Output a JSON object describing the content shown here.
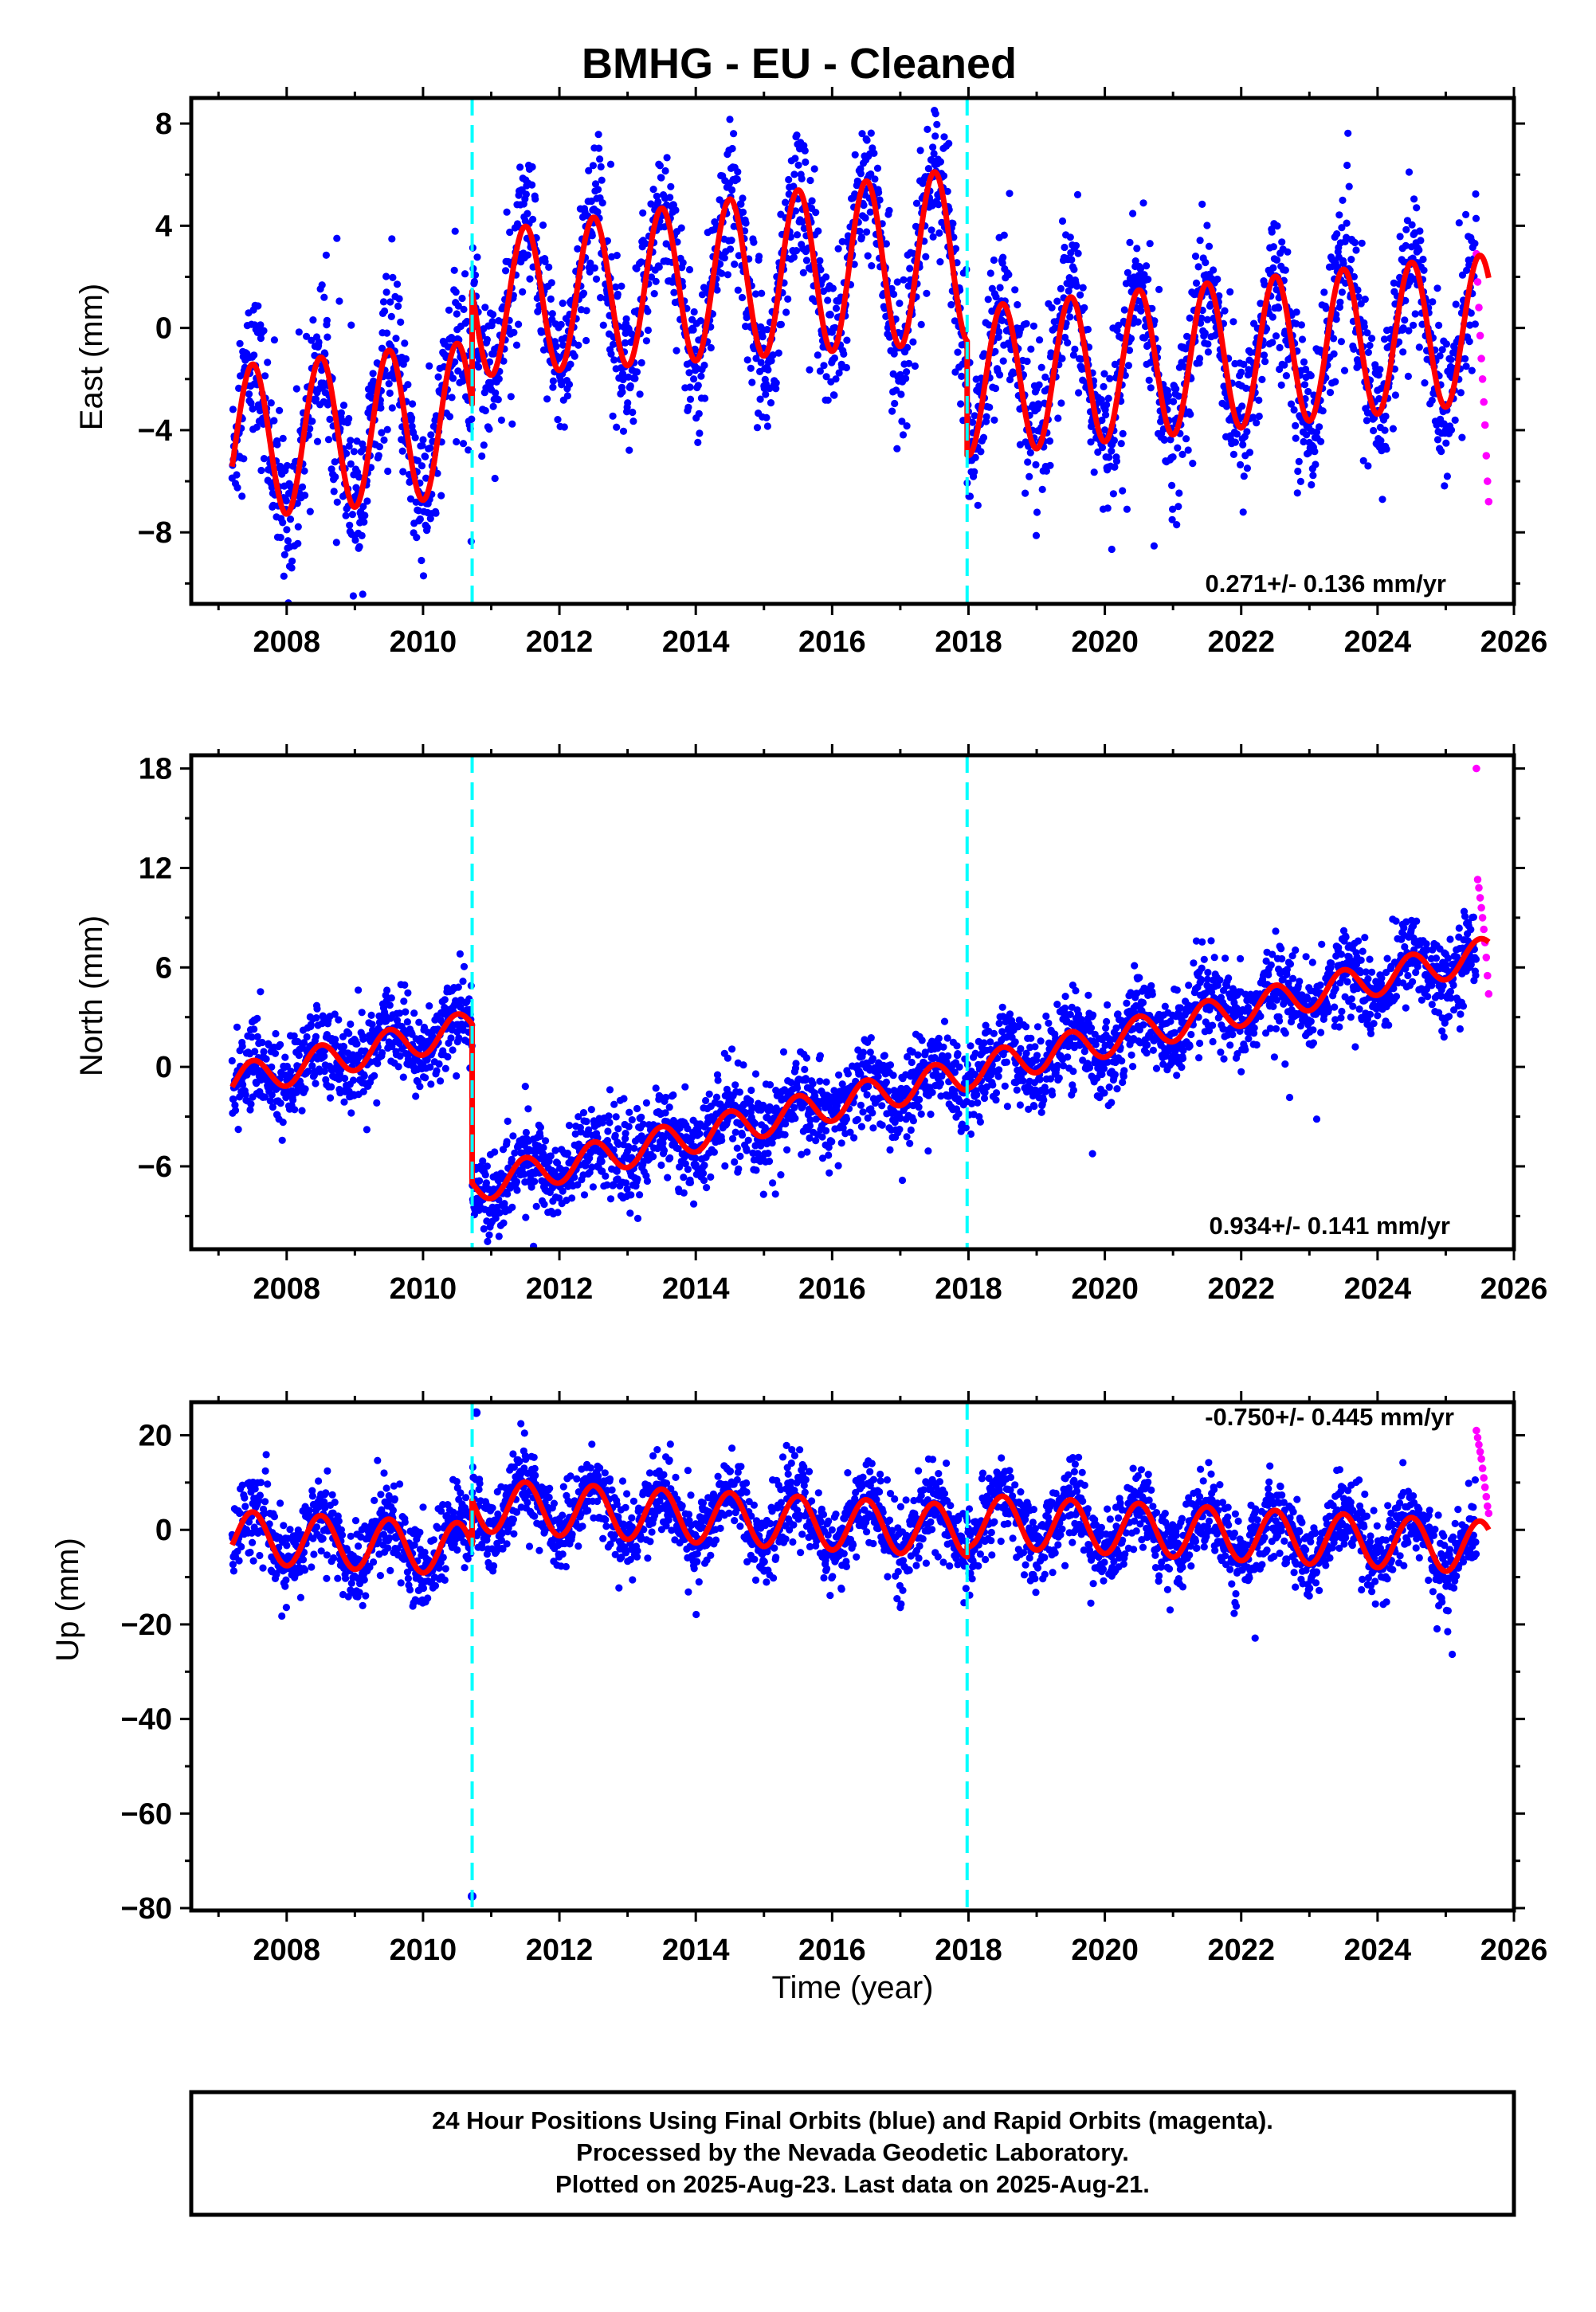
{
  "title": "BMHG  - EU - Cleaned",
  "colors": {
    "final_orbits": "#0000ff",
    "rapid_orbits": "#ff00ff",
    "model_fit": "#ff0000",
    "equipment_change": "#00ffff",
    "frame": "#000000"
  },
  "chart_data": [
    {
      "type": "scatter",
      "panel": "east",
      "ylabel": "East (mm)",
      "xlim": [
        2006.6,
        2026.0
      ],
      "ylim": [
        -10.8,
        9.0
      ],
      "yticks": [
        -8,
        -4,
        0,
        4,
        8
      ],
      "yticks_minor": [
        -10,
        -6,
        -2,
        2,
        6
      ],
      "xticks": [
        2008,
        2010,
        2012,
        2014,
        2016,
        2018,
        2020,
        2022,
        2024,
        2026
      ],
      "step_epochs": [
        2010.72,
        2017.98
      ],
      "rate_label": "0.271+/- 0.136 mm/yr",
      "data_start": 2007.2,
      "data_end": 2025.63,
      "rapid_start": 2025.45,
      "model": {
        "segments": [
          {
            "t0": 2007.2,
            "t1": 2010.72,
            "offset": -4.5,
            "slope": 0.271,
            "annual_amp": 3.0,
            "growth": 0.0
          },
          {
            "t0": 2010.72,
            "t1": 2017.98,
            "offset": 0.9,
            "slope": 0.271,
            "annual_amp": 2.8,
            "growth": 0.03
          },
          {
            "t0": 2017.98,
            "t1": 2025.63,
            "offset": -2.1,
            "slope": 0.271,
            "annual_amp": 2.9,
            "growth": 0.0
          }
        ],
        "noise": 1.45,
        "outlier_noise": 2.8
      },
      "rapid_values": [
        2.9,
        1.8,
        0.8,
        -0.3,
        -1.2,
        -2.0,
        -2.9,
        -3.8,
        -5.0,
        -6.0,
        -6.8
      ]
    },
    {
      "type": "scatter",
      "panel": "north",
      "ylabel": "North (mm)",
      "xlim": [
        2006.6,
        2026.0
      ],
      "ylim": [
        -11.0,
        18.8
      ],
      "yticks": [
        -6,
        0,
        6,
        12,
        18
      ],
      "yticks_minor": [
        -9,
        -3,
        3,
        9,
        15
      ],
      "xticks": [
        2008,
        2010,
        2012,
        2014,
        2016,
        2018,
        2020,
        2022,
        2024,
        2026
      ],
      "step_epochs": [
        2010.72,
        2017.98
      ],
      "rate_label": "0.934+/- 0.141 mm/yr",
      "data_start": 2007.2,
      "data_end": 2025.63,
      "rapid_start": 2025.45,
      "model": {
        "segments": [
          {
            "t0": 2007.2,
            "t1": 2010.72,
            "offset": -0.9,
            "slope": 0.934,
            "annual_amp": 1.0,
            "growth": 0.0
          },
          {
            "t0": 2010.72,
            "t1": 2017.98,
            "offset": -7.2,
            "slope": 0.934,
            "annual_amp": 1.0,
            "growth": 0.0
          },
          {
            "t0": 2017.98,
            "t1": 2025.63,
            "offset": -0.3,
            "slope": 0.934,
            "annual_amp": 1.0,
            "growth": 0.0
          }
        ],
        "noise": 1.3,
        "outlier_noise": 2.5
      },
      "rapid_values": [
        18.0,
        11.3,
        10.8,
        10.2,
        9.6,
        9.0,
        8.3,
        7.5,
        6.6,
        5.5,
        4.4
      ]
    },
    {
      "type": "scatter",
      "panel": "up",
      "ylabel": "Up (mm)",
      "xlabel": "Time (year)",
      "xlim": [
        2006.6,
        2026.0
      ],
      "ylim": [
        -80.5,
        27.0
      ],
      "yticks": [
        -80,
        -60,
        -40,
        -20,
        0,
        20
      ],
      "yticks_minor": [
        -70,
        -50,
        -30,
        -10,
        10
      ],
      "xticks": [
        2008,
        2010,
        2012,
        2014,
        2016,
        2018,
        2020,
        2022,
        2024,
        2026
      ],
      "step_epochs": [
        2010.72,
        2017.98
      ],
      "rate_label": "-0.750+/- 0.445 mm/yr",
      "data_start": 2007.2,
      "data_end": 2025.63,
      "rapid_start": 2025.45,
      "model": {
        "segments": [
          {
            "t0": 2007.2,
            "t1": 2010.72,
            "offset": -1.5,
            "slope": -0.75,
            "annual_amp": 5.5,
            "growth": 0.0
          },
          {
            "t0": 2010.72,
            "t1": 2017.98,
            "offset": 5.2,
            "slope": -0.75,
            "annual_amp": 5.5,
            "growth": 0.0
          },
          {
            "t0": 2017.98,
            "t1": 2025.63,
            "offset": 2.0,
            "slope": -0.75,
            "annual_amp": 5.5,
            "growth": 0.0
          }
        ],
        "noise": 4.2,
        "outlier_noise": 7.0
      },
      "outliers": [
        {
          "t": 2010.78,
          "v": 24.8
        },
        {
          "t": 2010.72,
          "v": -77.5
        }
      ],
      "rapid_values": [
        21.0,
        19.5,
        18.0,
        16.5,
        15.0,
        13.0,
        11.0,
        9.0,
        7.0,
        5.0,
        3.5
      ]
    }
  ],
  "footer": {
    "line1": "24 Hour Positions Using Final Orbits (blue) and Rapid Orbits (magenta).",
    "line2": "Processed by the Nevada Geodetic Laboratory.",
    "line3": "Plotted on 2025-Aug-23. Last data on 2025-Aug-21."
  }
}
